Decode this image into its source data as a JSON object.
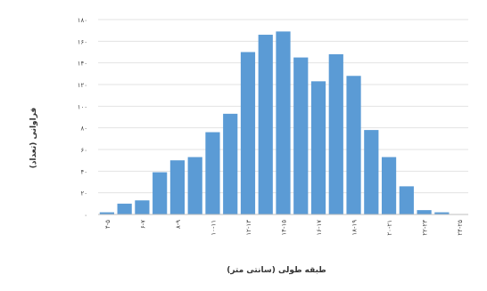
{
  "chart_data": {
    "type": "bar",
    "xlabel": "طبقه طولی (سانتی متر)",
    "ylabel": "فراوانی (تعداد)",
    "ylim": [
      0,
      180
    ],
    "yticks": [
      "۰",
      "۲۰",
      "۴۰",
      "۶۰",
      "۸۰",
      "۱۰۰",
      "۱۲۰",
      "۱۴۰",
      "۱۶۰",
      "۱۸۰"
    ],
    "yticks_values": [
      0,
      20,
      40,
      60,
      80,
      100,
      120,
      140,
      160,
      180
    ],
    "grid": true,
    "bar_color": "#5b9bd5",
    "categories": [
      "۴-۵",
      "۵-۶",
      "۶-۷",
      "۷-۸",
      "۸-۹",
      "۹-۱۰",
      "۱۰-۱۱",
      "۱۱-۱۲",
      "۱۲-۱۳",
      "۱۳-۱۴",
      "۱۴-۱۵",
      "۱۵-۱۶",
      "۱۶-۱۷",
      "۱۷-۱۸",
      "۱۸-۱۹",
      "۱۹-۲۰",
      "۲۰-۲۱",
      "۲۱-۲۲",
      "۲۲-۲۳",
      "۲۳-۲۴",
      "۲۴-۲۵"
    ],
    "visible_category_labels": [
      "۴-۵",
      "۶-۷",
      "۸-۹",
      "۱۰-۱۱",
      "۱۲-۱۳",
      "۱۴-۱۵",
      "۱۶-۱۷",
      "۱۸-۱۹",
      "۲۰-۲۱",
      "۲۲-۲۳",
      "۲۴-۲۵"
    ],
    "values": [
      2,
      10,
      13,
      39,
      50,
      53,
      76,
      93,
      150,
      166,
      169,
      145,
      123,
      148,
      128,
      78,
      53,
      26,
      4,
      2,
      0
    ]
  }
}
